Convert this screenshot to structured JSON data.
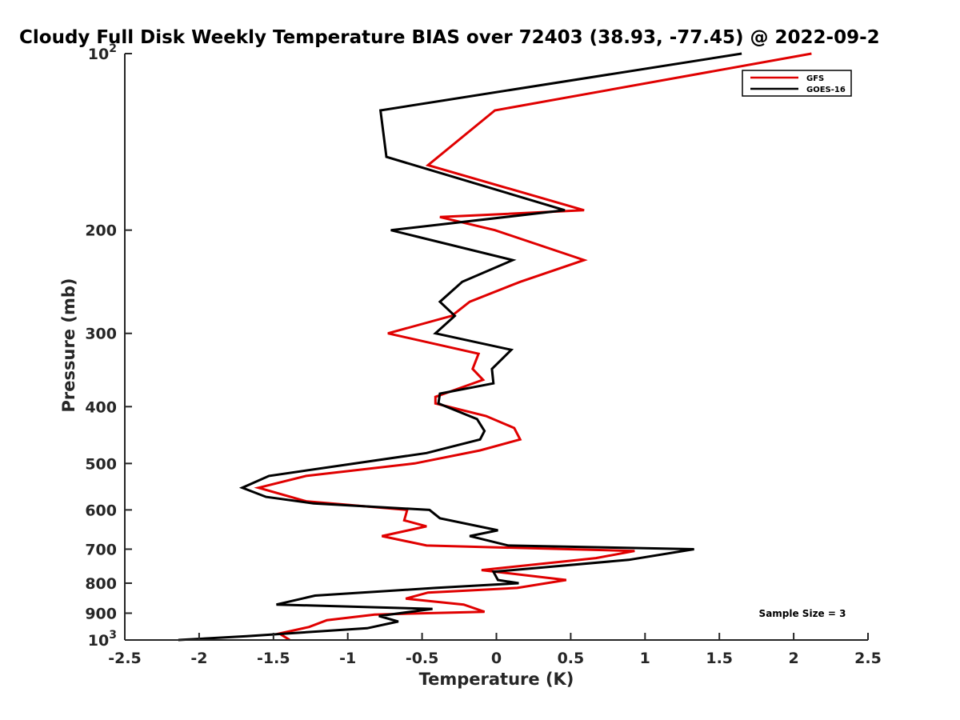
{
  "chart_data": {
    "type": "line",
    "title": "Cloudy Full Disk Weekly Temperature BIAS over 72403 (38.93, -77.45) @ 2022-09-2",
    "xlabel": "Temperature (K)",
    "ylabel": "Pressure (mb)",
    "xlim": [
      -2.5,
      2.5
    ],
    "ylim": [
      100,
      1000
    ],
    "y_scale": "log",
    "y_direction": "reversed",
    "grid": false,
    "legend_placement": "top-right",
    "x_ticks": [
      "-2.5",
      "-2",
      "-1.5",
      "-1",
      "-0.5",
      "0",
      "0.5",
      "1",
      "1.5",
      "2",
      "2.5"
    ],
    "y_ticks": [
      {
        "value": 100,
        "base": "10",
        "exp": "2"
      },
      {
        "value": 200,
        "label": "200"
      },
      {
        "value": 300,
        "label": "300"
      },
      {
        "value": 400,
        "label": "400"
      },
      {
        "value": 500,
        "label": "500"
      },
      {
        "value": 600,
        "label": "600"
      },
      {
        "value": 700,
        "label": "700"
      },
      {
        "value": 800,
        "label": "800"
      },
      {
        "value": 900,
        "label": "900"
      },
      {
        "value": 1000,
        "base": "10",
        "exp": "3"
      }
    ],
    "annotation": "Sample Size = 3",
    "series": [
      {
        "name": "GFS",
        "color": "#e00000",
        "points": [
          [
            2.12,
            100
          ],
          [
            -0.01,
            125
          ],
          [
            -0.46,
            155
          ],
          [
            0.59,
            185
          ],
          [
            -0.38,
            190
          ],
          [
            -0.01,
            200
          ],
          [
            0.59,
            225
          ],
          [
            0.16,
            245
          ],
          [
            -0.18,
            265
          ],
          [
            -0.3,
            280
          ],
          [
            -0.73,
            300
          ],
          [
            -0.12,
            325
          ],
          [
            -0.16,
            345
          ],
          [
            -0.09,
            360
          ],
          [
            -0.41,
            385
          ],
          [
            -0.41,
            395
          ],
          [
            -0.07,
            415
          ],
          [
            0.12,
            435
          ],
          [
            0.16,
            455
          ],
          [
            -0.11,
            475
          ],
          [
            -0.55,
            500
          ],
          [
            -1.28,
            525
          ],
          [
            -1.6,
            550
          ],
          [
            -1.28,
            580
          ],
          [
            -0.6,
            600
          ],
          [
            -0.62,
            625
          ],
          [
            -0.47,
            640
          ],
          [
            -0.77,
            665
          ],
          [
            -0.47,
            690
          ],
          [
            0.93,
            705
          ],
          [
            0.67,
            725
          ],
          [
            -0.1,
            760
          ],
          [
            0.47,
            790
          ],
          [
            0.14,
            815
          ],
          [
            -0.46,
            830
          ],
          [
            -0.61,
            850
          ],
          [
            -0.22,
            870
          ],
          [
            -0.08,
            895
          ],
          [
            -0.82,
            905
          ],
          [
            -1.14,
            925
          ],
          [
            -1.26,
            950
          ],
          [
            -1.46,
            975
          ],
          [
            -1.39,
            1000
          ]
        ]
      },
      {
        "name": "GOES-16",
        "color": "#000000",
        "points": [
          [
            1.65,
            100
          ],
          [
            -0.78,
            125
          ],
          [
            -0.74,
            150
          ],
          [
            0.46,
            185
          ],
          [
            -0.71,
            200
          ],
          [
            -0.54,
            205
          ],
          [
            0.11,
            225
          ],
          [
            -0.23,
            245
          ],
          [
            -0.38,
            265
          ],
          [
            -0.28,
            280
          ],
          [
            -0.41,
            300
          ],
          [
            0.1,
            320
          ],
          [
            -0.03,
            345
          ],
          [
            -0.02,
            365
          ],
          [
            -0.38,
            380
          ],
          [
            -0.39,
            395
          ],
          [
            -0.13,
            420
          ],
          [
            -0.08,
            440
          ],
          [
            -0.11,
            455
          ],
          [
            -0.47,
            480
          ],
          [
            -1.53,
            525
          ],
          [
            -1.71,
            550
          ],
          [
            -1.55,
            570
          ],
          [
            -1.23,
            585
          ],
          [
            -0.45,
            600
          ],
          [
            -0.38,
            620
          ],
          [
            0.01,
            650
          ],
          [
            -0.18,
            665
          ],
          [
            0.08,
            690
          ],
          [
            1.33,
            700
          ],
          [
            0.89,
            730
          ],
          [
            -0.02,
            765
          ],
          [
            0.01,
            790
          ],
          [
            0.15,
            800
          ],
          [
            -0.41,
            815
          ],
          [
            -1.22,
            840
          ],
          [
            -1.48,
            870
          ],
          [
            -0.43,
            885
          ],
          [
            -0.79,
            910
          ],
          [
            -0.66,
            930
          ],
          [
            -0.87,
            955
          ],
          [
            -1.68,
            985
          ],
          [
            -2.14,
            1000
          ]
        ]
      }
    ]
  }
}
